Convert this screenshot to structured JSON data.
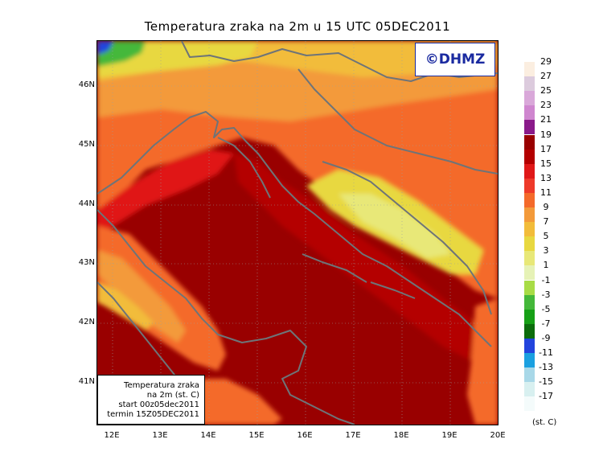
{
  "title": "Temperatura zraka na 2m u 15 UTC 05DEC2011",
  "logo_text": "©DHMZ",
  "info_box": [
    "Temperatura zraka",
    "na 2m (st. C)",
    "start 00z05dec2011",
    "termin 15Z05DEC2011"
  ],
  "lat_labels": [
    "46N",
    "45N",
    "44N",
    "43N",
    "42N",
    "41N"
  ],
  "lon_labels": [
    "12E",
    "13E",
    "14E",
    "15E",
    "16E",
    "17E",
    "18E",
    "19E",
    "20E"
  ],
  "legend": {
    "units": "(st. C)",
    "labels": [
      "29",
      "27",
      "25",
      "23",
      "21",
      "19",
      "17",
      "15",
      "13",
      "11",
      "9",
      "7",
      "5",
      "3",
      "1",
      "-1",
      "-3",
      "-5",
      "-7",
      "-9",
      "-11",
      "-13",
      "-15",
      "-17"
    ],
    "colors": [
      "#fbeee0",
      "#dccbdd",
      "#d9a8d9",
      "#cf86cf",
      "#8a1a8a",
      "#990000",
      "#b40000",
      "#e01818",
      "#ee3a2a",
      "#f46a2a",
      "#f39a3a",
      "#f2bc3a",
      "#e8d840",
      "#e8e878",
      "#e6f2b6",
      "#a8dc46",
      "#44b83a",
      "#16a016",
      "#0c6c0c",
      "#2244dd",
      "#1aa0e0",
      "#a8d8e8",
      "#d8f0f0",
      "#f4fbfb"
    ]
  }
}
